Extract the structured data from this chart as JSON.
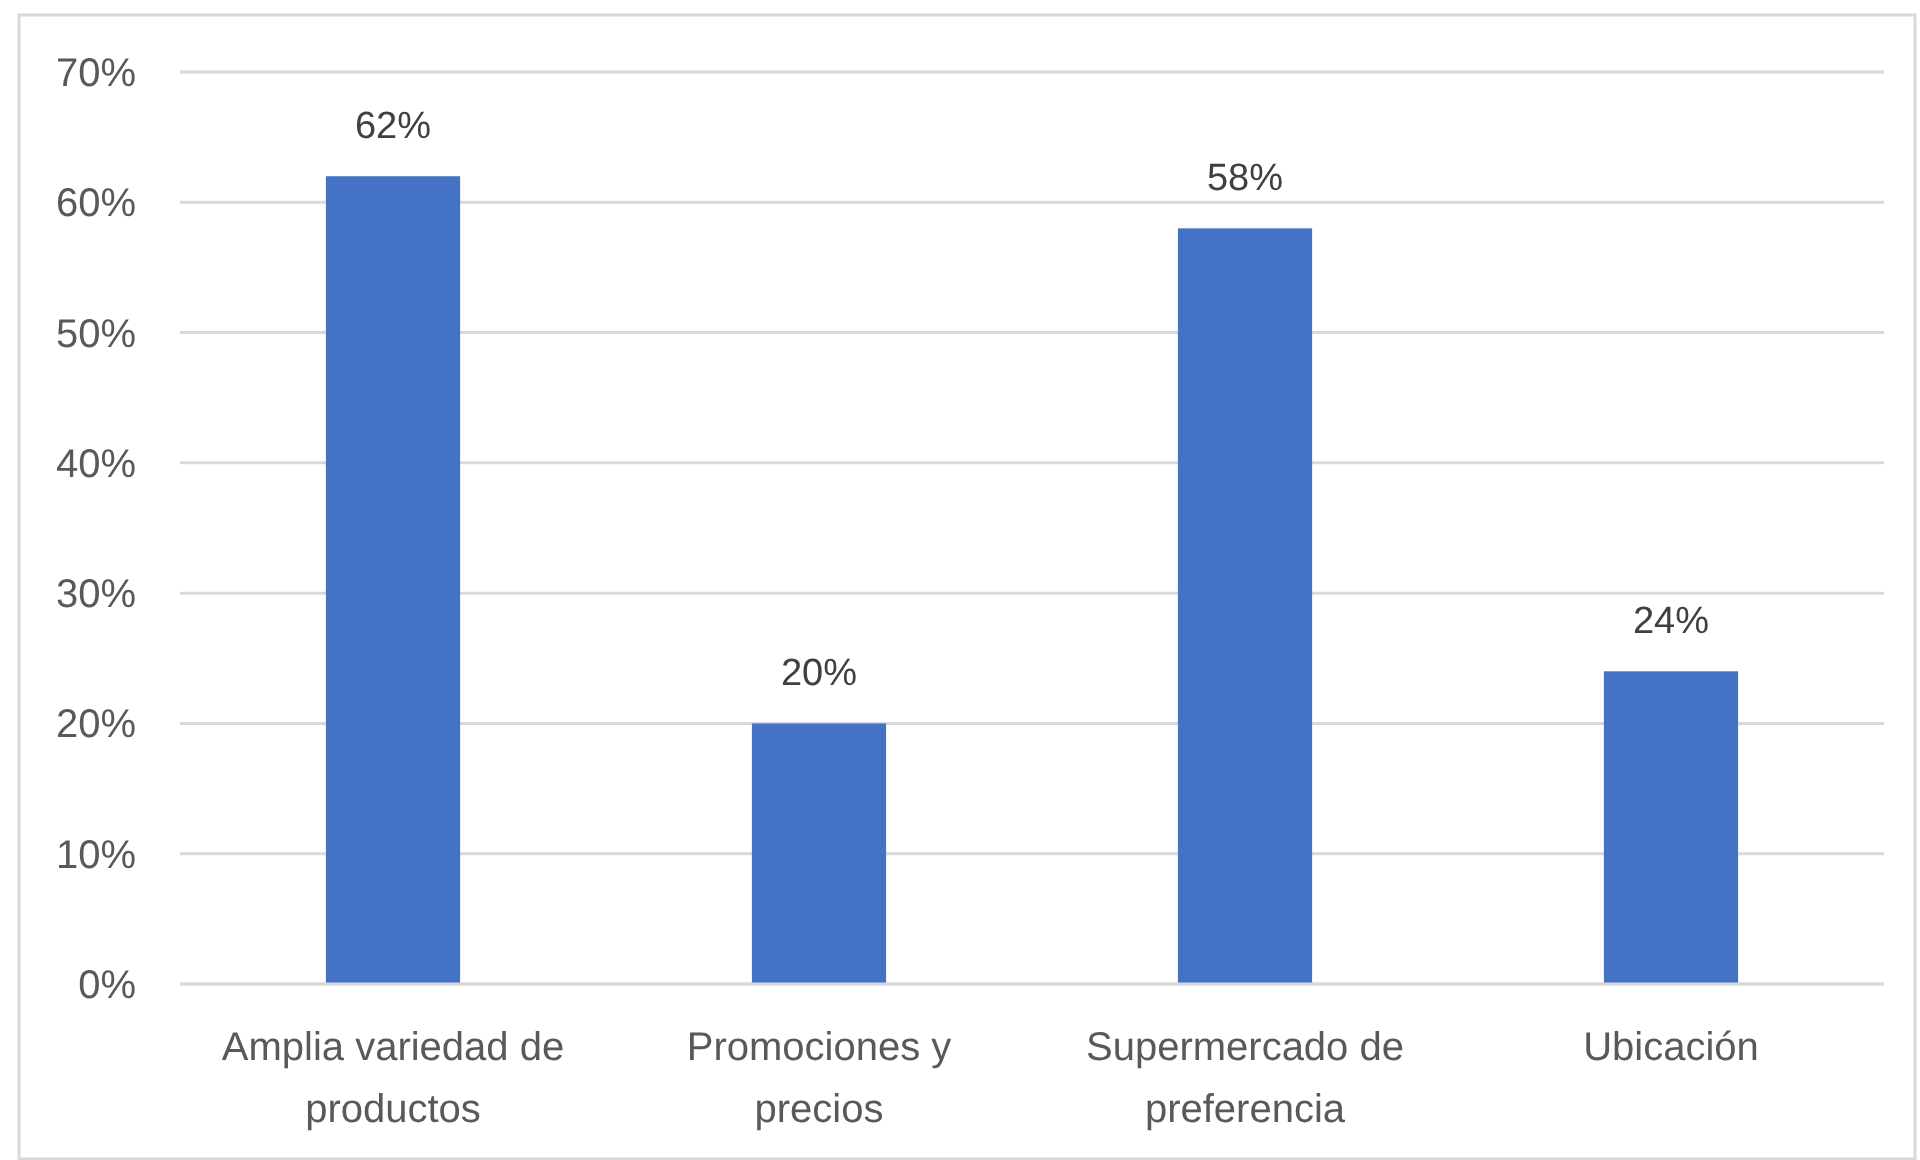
{
  "chart_data": {
    "type": "bar",
    "categories": [
      "Amplia variedad de productos",
      "Promociones y precios",
      "Supermercado de preferencia",
      "Ubicación"
    ],
    "values": [
      62,
      20,
      58,
      24
    ],
    "value_labels": [
      "62%",
      "20%",
      "58%",
      "24%"
    ],
    "color": "#4472c4",
    "ylim": [
      0,
      70
    ],
    "yticks": [
      {
        "value": 0,
        "label": "0%"
      },
      {
        "value": 10,
        "label": "10%"
      },
      {
        "value": 20,
        "label": "20%"
      },
      {
        "value": 30,
        "label": "30%"
      },
      {
        "value": 40,
        "label": "40%"
      },
      {
        "value": 50,
        "label": "50%"
      },
      {
        "value": 60,
        "label": "60%"
      },
      {
        "value": 70,
        "label": "70%"
      }
    ],
    "grid": "y"
  }
}
